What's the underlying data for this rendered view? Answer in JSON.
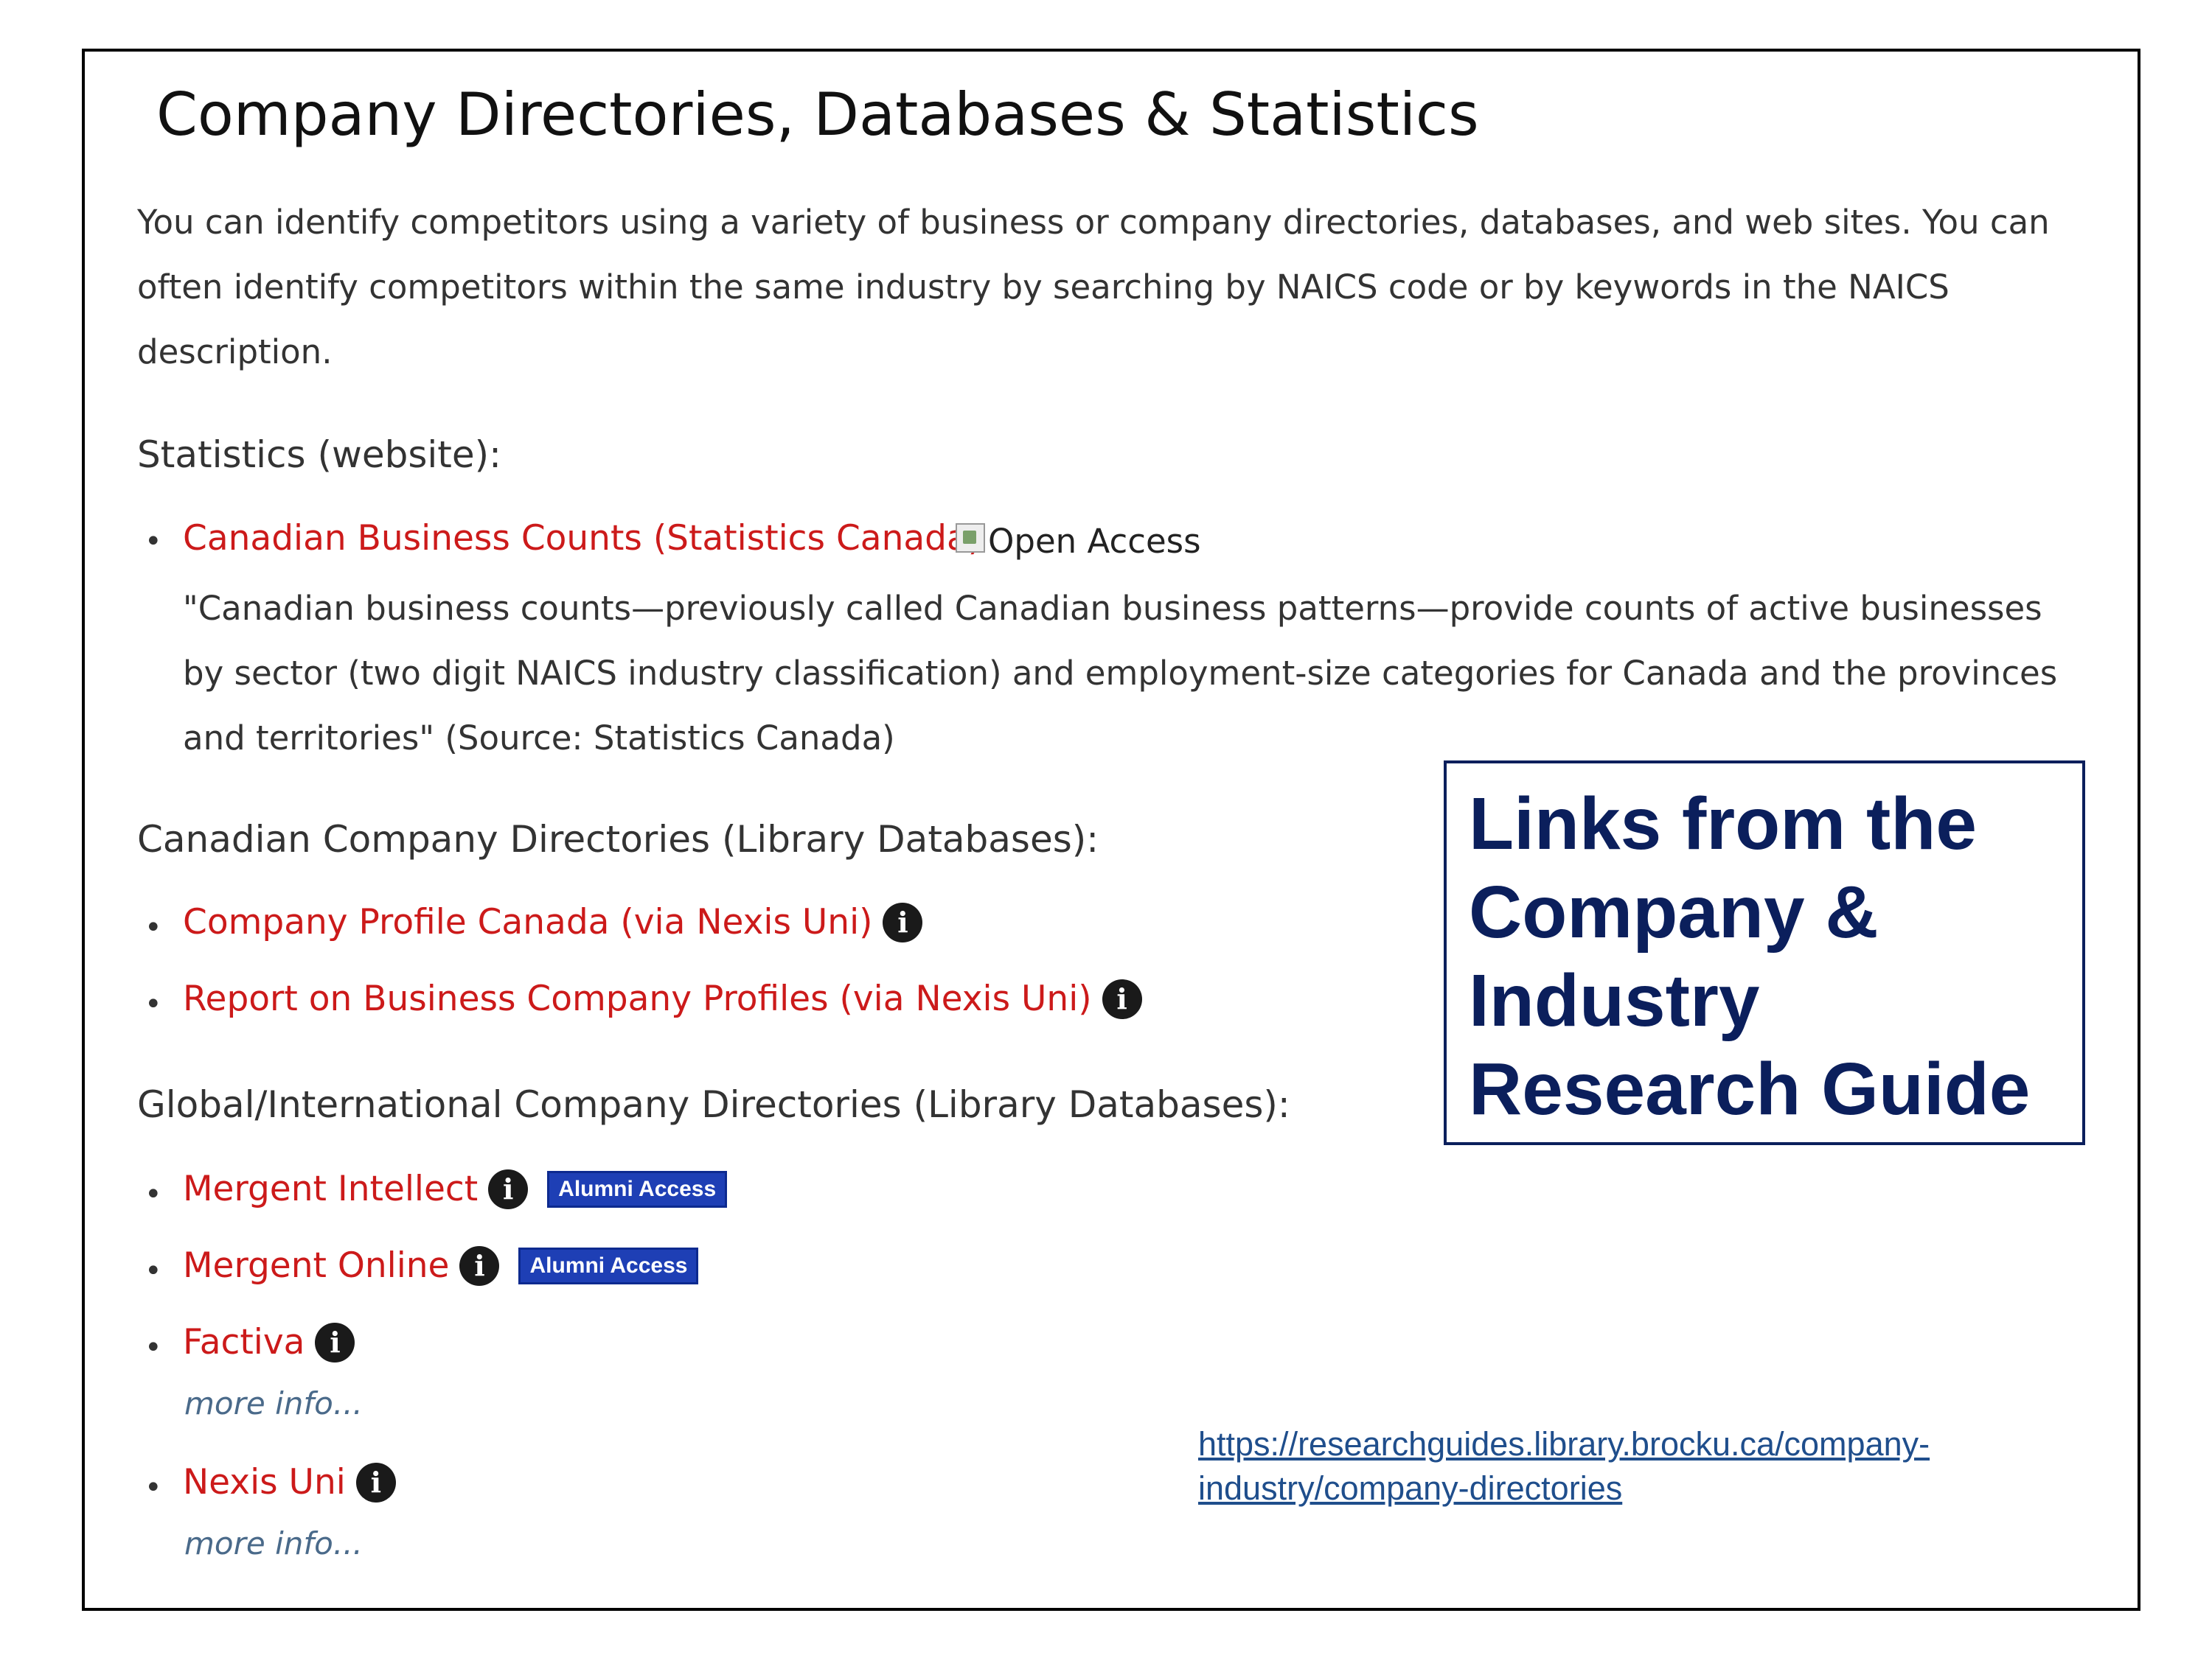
{
  "title": "Company Directories, Databases & Statistics",
  "intro": "You can identify competitors using a variety of business or company directories, databases, and web sites. You can often identify competitors within the same industry by searching by NAICS code or by keywords in the NAICS description.",
  "sections": {
    "statistics": {
      "heading": "Statistics (website):",
      "items": [
        {
          "label": "Canadian Business Counts (Statistics Canada)",
          "image_alt": "Open Access",
          "description": "\"Canadian business counts—previously called Canadian business patterns—provide counts of active businesses by sector (two digit NAICS industry classification) and employment-size categories for Canada and the provinces and territories\" (Source: Statistics Canada)"
        }
      ]
    },
    "canadian": {
      "heading": "Canadian Company Directories (Library Databases):",
      "items": [
        {
          "label": "Company Profile Canada (via Nexis Uni)"
        },
        {
          "label": "Report on Business Company Profiles (via Nexis Uni)"
        }
      ]
    },
    "global": {
      "heading": "Global/International Company Directories (Library Databases):",
      "items": [
        {
          "label": "Mergent Intellect",
          "badge": "Alumni Access"
        },
        {
          "label": "Mergent Online",
          "badge": "Alumni Access"
        },
        {
          "label": "Factiva",
          "more": "more info..."
        },
        {
          "label": "Nexis Uni",
          "more": "more info..."
        }
      ]
    }
  },
  "icons": {
    "info": "info-circle-icon",
    "bullet": "bullet-icon",
    "broken_image": "broken-image-icon"
  },
  "callout": "Links from the Company & Industry Research Guide",
  "url": "https://researchguides.library.brocku.ca/company-industry/company-directories",
  "colors": {
    "link": "#cc1a1a",
    "callout": "#0b1f5c",
    "badge": "#1e3fb5",
    "url": "#1f4e8c"
  }
}
